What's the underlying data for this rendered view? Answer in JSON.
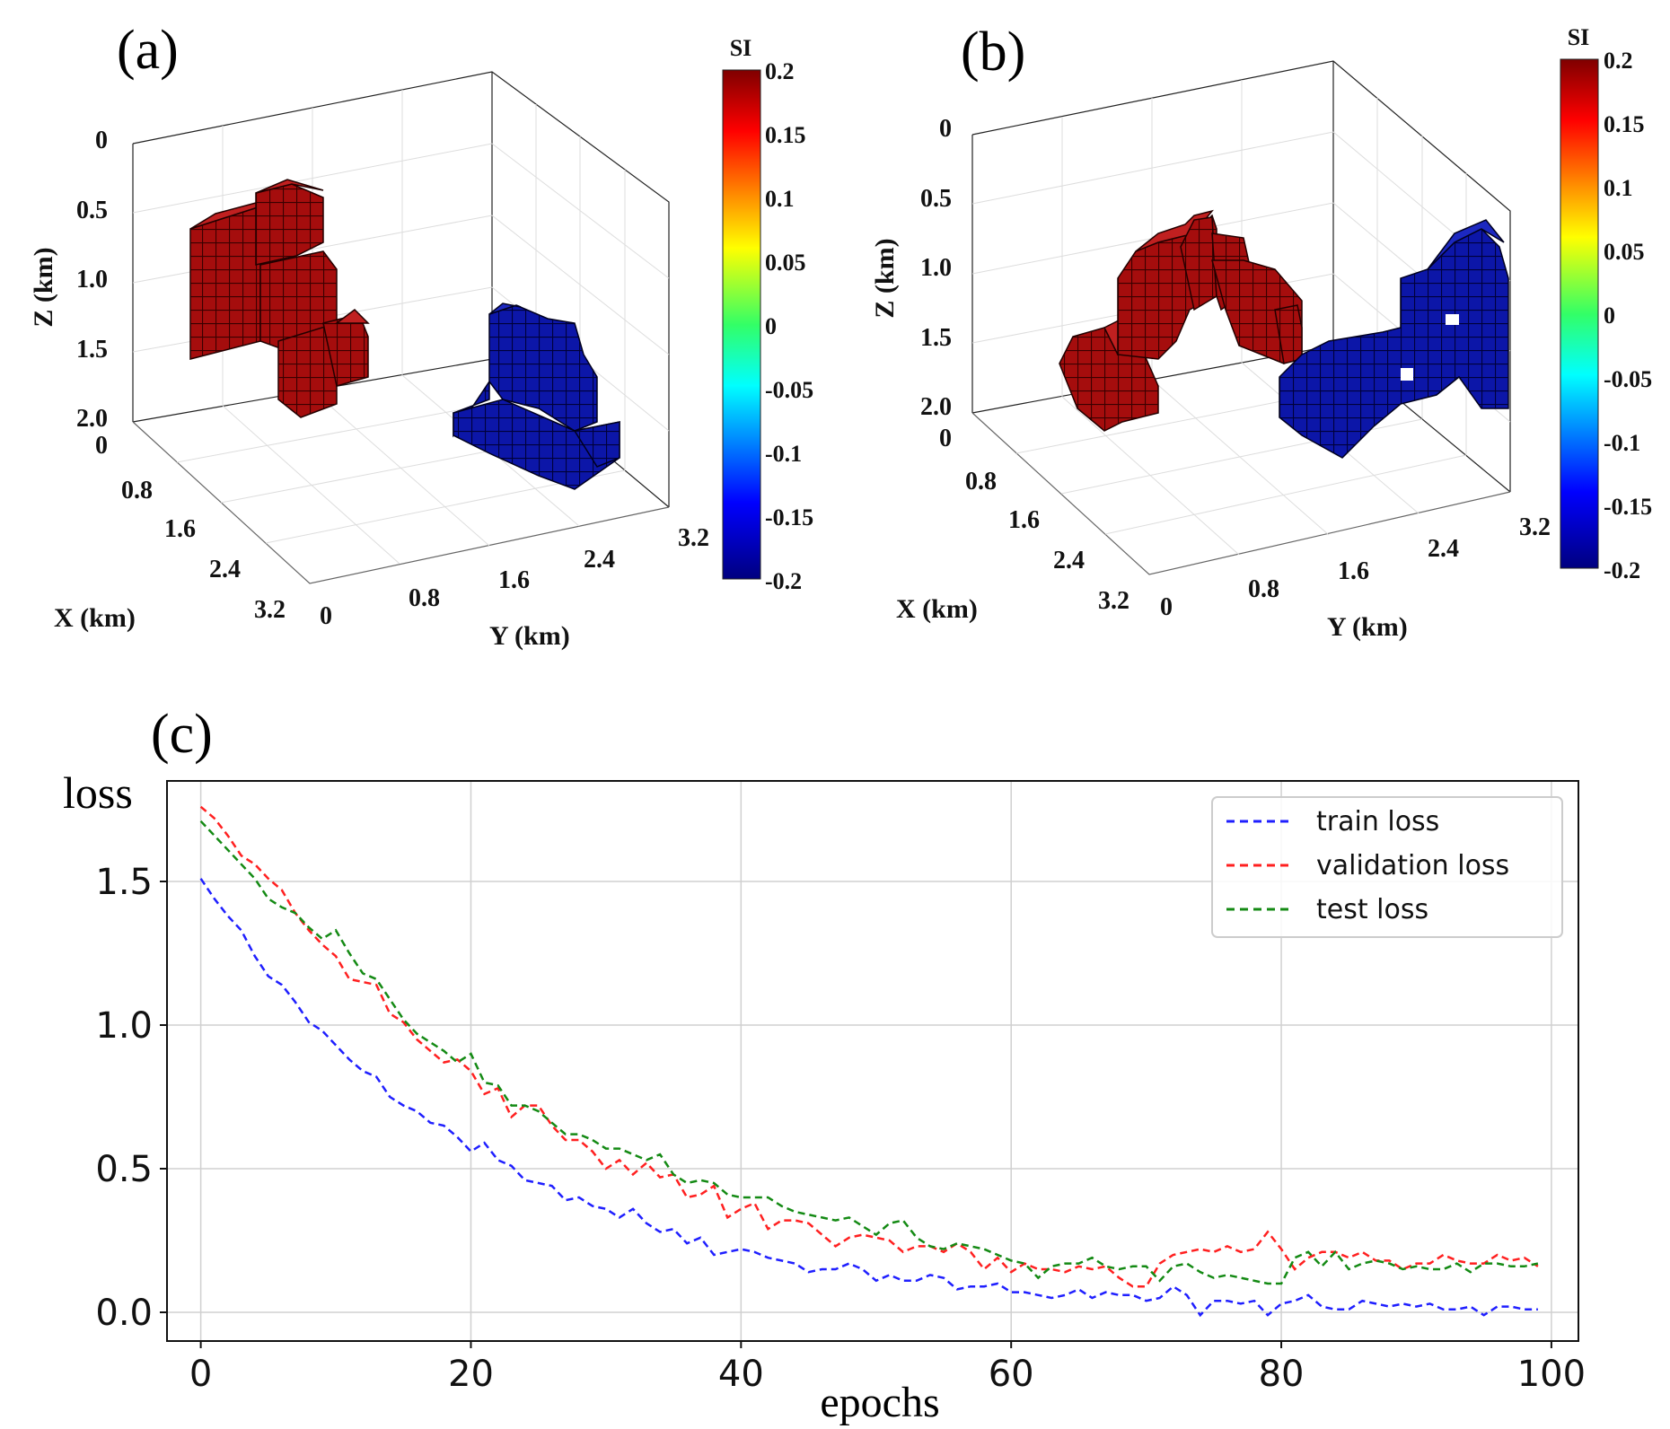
{
  "panel_labels": {
    "a": "(a)",
    "b": "(b)",
    "c": "(c)"
  },
  "colors": {
    "positive_block": "#a50d0d",
    "negative_block": "#0c16a8",
    "train": "#1f1fff",
    "validation": "#ff2020",
    "test": "#148a14"
  },
  "chart_data": [
    {
      "id": "a",
      "type": "heatmap",
      "subtype": "3d-voxel",
      "xlabel": "X (km)",
      "ylabel": "Y (km)",
      "zlabel": "Z (km)",
      "x_ticks": [
        "0",
        "0.8",
        "1.6",
        "2.4",
        "3.2"
      ],
      "y_ticks": [
        "0",
        "0.8",
        "1.6",
        "2.4",
        "3.2"
      ],
      "z_ticks": [
        "0",
        "0.5",
        "1.0",
        "1.5",
        "2.0"
      ],
      "colorbar": {
        "title": "SI",
        "min": -0.2,
        "max": 0.2,
        "ticks": [
          "0.2",
          "0.15",
          "0.1",
          "0.05",
          "0",
          "-0.05",
          "-0.1",
          "-0.15",
          "-0.2"
        ]
      },
      "bodies": [
        {
          "name": "positive anomaly",
          "value": 0.2
        },
        {
          "name": "negative anomaly",
          "value": -0.2
        }
      ]
    },
    {
      "id": "b",
      "type": "heatmap",
      "subtype": "3d-voxel",
      "xlabel": "X (km)",
      "ylabel": "Y (km)",
      "zlabel": "Z (km)",
      "x_ticks": [
        "0",
        "0.8",
        "1.6",
        "2.4",
        "3.2"
      ],
      "y_ticks": [
        "0",
        "0.8",
        "1.6",
        "2.4",
        "3.2"
      ],
      "z_ticks": [
        "0",
        "0.5",
        "1.0",
        "1.5",
        "2.0"
      ],
      "colorbar": {
        "title": "SI",
        "min": -0.2,
        "max": 0.2,
        "ticks": [
          "0.2",
          "0.15",
          "0.1",
          "0.05",
          "0",
          "-0.05",
          "-0.1",
          "-0.15",
          "-0.2"
        ]
      },
      "bodies": [
        {
          "name": "positive anomaly",
          "value": 0.2
        },
        {
          "name": "negative anomaly",
          "value": -0.2
        }
      ]
    },
    {
      "id": "c",
      "type": "line",
      "xlabel": "epochs",
      "ylabel": "loss",
      "xlim": [
        -2.5,
        102
      ],
      "ylim": [
        -0.1,
        1.85
      ],
      "x_ticks": [
        0,
        20,
        40,
        60,
        80,
        100
      ],
      "y_ticks": [
        0.0,
        0.5,
        1.0,
        1.5
      ],
      "x_tick_labels": [
        "0",
        "20",
        "40",
        "60",
        "80",
        "100"
      ],
      "y_tick_labels": [
        "0.0",
        "0.5",
        "1.0",
        "1.5"
      ],
      "grid": true,
      "legend_position": "top-right",
      "series": [
        {
          "name": "train loss",
          "color": "#1f1fff",
          "values": [
            1.51,
            1.44,
            1.38,
            1.33,
            1.24,
            1.17,
            1.14,
            1.08,
            1.01,
            0.98,
            0.93,
            0.88,
            0.84,
            0.82,
            0.75,
            0.72,
            0.7,
            0.66,
            0.65,
            0.61,
            0.56,
            0.59,
            0.53,
            0.51,
            0.46,
            0.45,
            0.44,
            0.39,
            0.4,
            0.37,
            0.36,
            0.33,
            0.36,
            0.31,
            0.28,
            0.29,
            0.24,
            0.26,
            0.2,
            0.21,
            0.22,
            0.21,
            0.19,
            0.18,
            0.17,
            0.14,
            0.15,
            0.15,
            0.17,
            0.15,
            0.11,
            0.13,
            0.11,
            0.11,
            0.13,
            0.12,
            0.08,
            0.09,
            0.09,
            0.1,
            0.07,
            0.07,
            0.06,
            0.05,
            0.06,
            0.08,
            0.05,
            0.07,
            0.06,
            0.06,
            0.04,
            0.05,
            0.09,
            0.06,
            -0.01,
            0.04,
            0.04,
            0.03,
            0.04,
            -0.01,
            0.03,
            0.04,
            0.06,
            0.02,
            0.01,
            0.01,
            0.04,
            0.03,
            0.02,
            0.03,
            0.02,
            0.03,
            0.01,
            0.01,
            0.02,
            -0.01,
            0.02,
            0.02,
            0.01,
            0.01
          ]
        },
        {
          "name": "validation loss",
          "color": "#ff2020",
          "values": [
            1.76,
            1.72,
            1.66,
            1.59,
            1.56,
            1.51,
            1.47,
            1.39,
            1.33,
            1.28,
            1.24,
            1.16,
            1.15,
            1.14,
            1.04,
            1.01,
            0.95,
            0.91,
            0.87,
            0.88,
            0.84,
            0.76,
            0.78,
            0.68,
            0.72,
            0.72,
            0.65,
            0.6,
            0.6,
            0.56,
            0.5,
            0.53,
            0.48,
            0.52,
            0.47,
            0.48,
            0.4,
            0.41,
            0.44,
            0.33,
            0.36,
            0.38,
            0.29,
            0.32,
            0.32,
            0.31,
            0.27,
            0.23,
            0.26,
            0.27,
            0.26,
            0.25,
            0.21,
            0.23,
            0.23,
            0.21,
            0.24,
            0.21,
            0.15,
            0.19,
            0.14,
            0.17,
            0.15,
            0.15,
            0.14,
            0.16,
            0.15,
            0.16,
            0.12,
            0.09,
            0.09,
            0.17,
            0.2,
            0.21,
            0.22,
            0.21,
            0.23,
            0.21,
            0.22,
            0.28,
            0.22,
            0.15,
            0.19,
            0.21,
            0.21,
            0.19,
            0.21,
            0.18,
            0.18,
            0.15,
            0.17,
            0.17,
            0.2,
            0.18,
            0.17,
            0.17,
            0.2,
            0.18,
            0.19,
            0.16
          ]
        },
        {
          "name": "test loss",
          "color": "#148a14",
          "values": [
            1.71,
            1.66,
            1.61,
            1.56,
            1.51,
            1.44,
            1.41,
            1.39,
            1.34,
            1.3,
            1.33,
            1.25,
            1.18,
            1.16,
            1.09,
            1.02,
            0.97,
            0.94,
            0.91,
            0.87,
            0.9,
            0.8,
            0.79,
            0.72,
            0.72,
            0.7,
            0.66,
            0.62,
            0.62,
            0.6,
            0.57,
            0.57,
            0.55,
            0.53,
            0.55,
            0.48,
            0.45,
            0.46,
            0.45,
            0.41,
            0.4,
            0.4,
            0.4,
            0.37,
            0.35,
            0.34,
            0.33,
            0.32,
            0.33,
            0.3,
            0.27,
            0.31,
            0.32,
            0.26,
            0.23,
            0.22,
            0.24,
            0.23,
            0.22,
            0.2,
            0.18,
            0.17,
            0.12,
            0.16,
            0.17,
            0.17,
            0.19,
            0.16,
            0.15,
            0.16,
            0.16,
            0.11,
            0.16,
            0.17,
            0.14,
            0.12,
            0.13,
            0.12,
            0.11,
            0.1,
            0.1,
            0.19,
            0.21,
            0.16,
            0.21,
            0.15,
            0.17,
            0.18,
            0.17,
            0.15,
            0.16,
            0.15,
            0.15,
            0.17,
            0.14,
            0.17,
            0.17,
            0.16,
            0.16,
            0.17
          ]
        }
      ]
    }
  ]
}
